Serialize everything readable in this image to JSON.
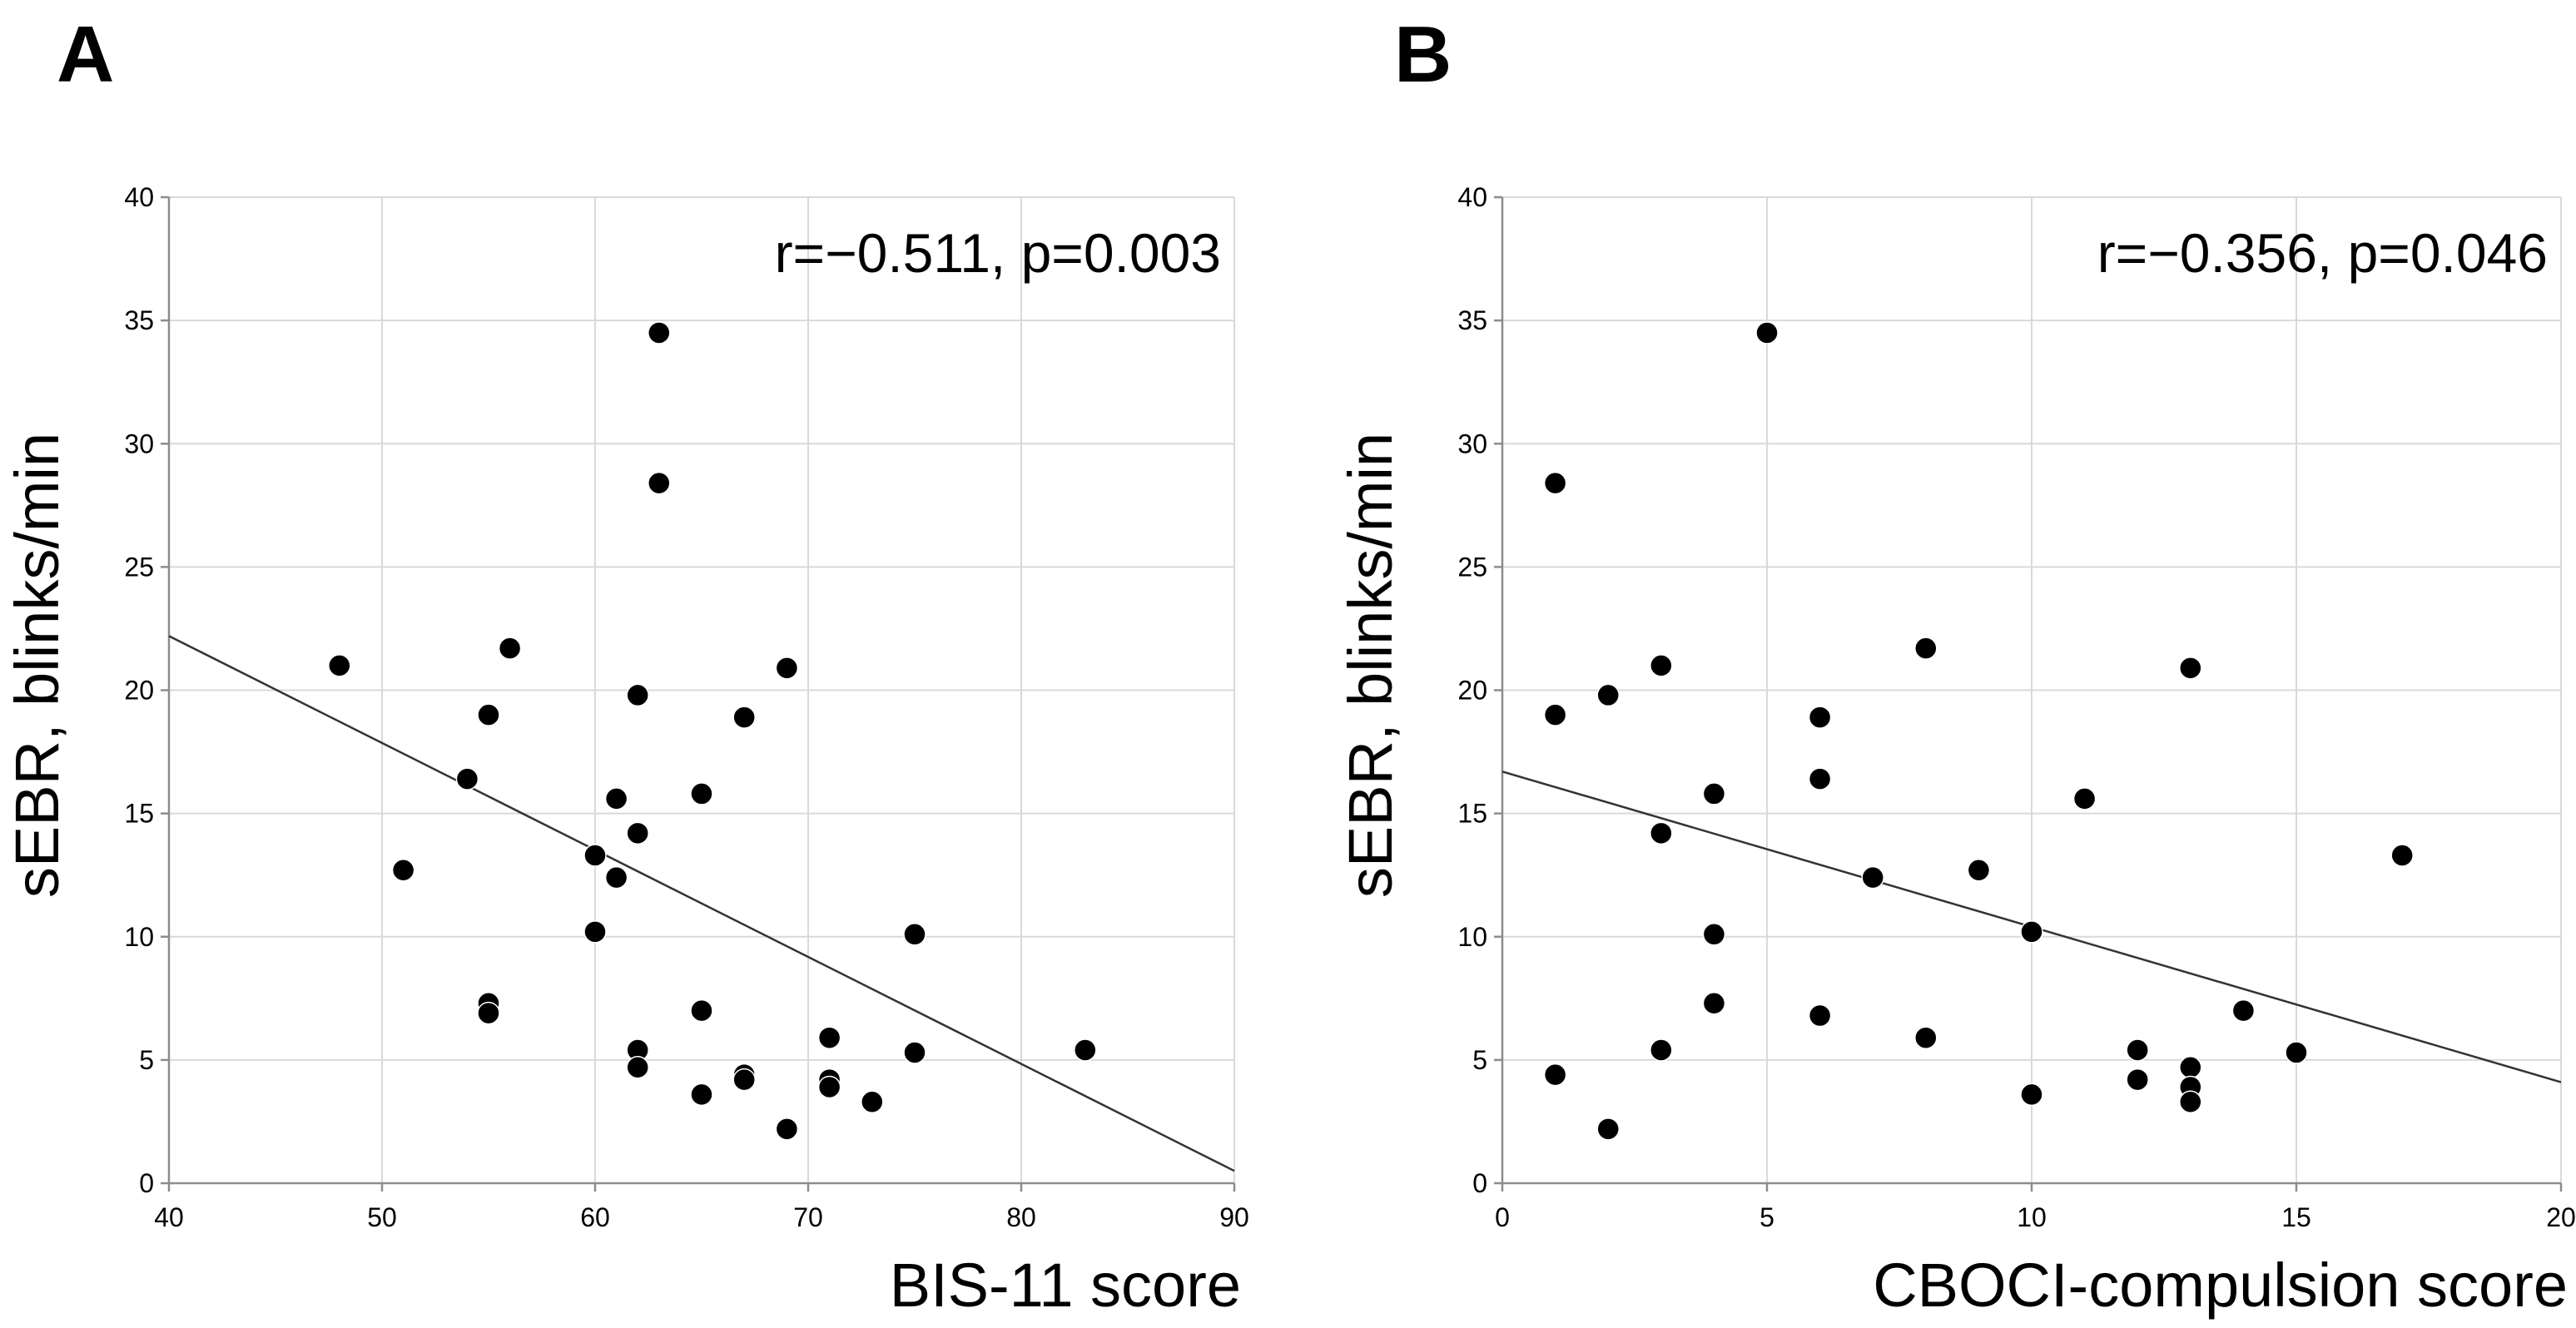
{
  "figure": {
    "panels": [
      {
        "label": "A"
      },
      {
        "label": "B"
      }
    ]
  },
  "chart_data": [
    {
      "type": "scatter",
      "panel": "A",
      "xlabel": "BIS-11 score",
      "ylabel": "sEBR, blinks/min",
      "annotation": "r=−0.511, p=0.003",
      "xlim": [
        40,
        90
      ],
      "ylim": [
        0,
        40
      ],
      "xticks": [
        "40",
        "50",
        "60",
        "70",
        "80",
        "90"
      ],
      "yticks": [
        "0",
        "5",
        "10",
        "15",
        "20",
        "25",
        "30",
        "35",
        "40"
      ],
      "grid": true,
      "points": [
        [
          48,
          21.0
        ],
        [
          51,
          12.7
        ],
        [
          54,
          16.4
        ],
        [
          55,
          19.0
        ],
        [
          55,
          7.3
        ],
        [
          55,
          6.9
        ],
        [
          56,
          21.7
        ],
        [
          60,
          13.3
        ],
        [
          60,
          10.2
        ],
        [
          61,
          15.6
        ],
        [
          61,
          12.4
        ],
        [
          62,
          19.8
        ],
        [
          62,
          14.2
        ],
        [
          62,
          5.4
        ],
        [
          62,
          4.7
        ],
        [
          63,
          34.5
        ],
        [
          63,
          28.4
        ],
        [
          65,
          15.8
        ],
        [
          65,
          7.0
        ],
        [
          65,
          3.6
        ],
        [
          67,
          18.9
        ],
        [
          67,
          4.4
        ],
        [
          67,
          4.2
        ],
        [
          69,
          20.9
        ],
        [
          69,
          2.2
        ],
        [
          71,
          5.9
        ],
        [
          71,
          4.2
        ],
        [
          71,
          3.9
        ],
        [
          73,
          3.3
        ],
        [
          75,
          10.1
        ],
        [
          75,
          5.3
        ],
        [
          83,
          5.4
        ]
      ],
      "fit_line": {
        "x": [
          40,
          90
        ],
        "y": [
          22.2,
          0.5
        ]
      }
    },
    {
      "type": "scatter",
      "panel": "B",
      "xlabel": "CBOCI-compulsion score",
      "ylabel": "sEBR, blinks/min",
      "annotation": "r=−0.356, p=0.046",
      "xlim": [
        0,
        20
      ],
      "ylim": [
        0,
        40
      ],
      "xticks": [
        "0",
        "5",
        "10",
        "15",
        "20"
      ],
      "yticks": [
        "0",
        "5",
        "10",
        "15",
        "20",
        "25",
        "30",
        "35",
        "40"
      ],
      "grid": true,
      "points": [
        [
          1,
          28.4
        ],
        [
          1,
          19.0
        ],
        [
          1,
          4.4
        ],
        [
          2,
          19.8
        ],
        [
          2,
          2.2
        ],
        [
          3,
          21.0
        ],
        [
          3,
          14.2
        ],
        [
          3,
          5.4
        ],
        [
          4,
          15.8
        ],
        [
          4,
          10.1
        ],
        [
          4,
          7.3
        ],
        [
          5,
          34.5
        ],
        [
          6,
          18.9
        ],
        [
          6,
          16.4
        ],
        [
          6,
          6.8
        ],
        [
          7,
          12.4
        ],
        [
          8,
          21.7
        ],
        [
          8,
          5.9
        ],
        [
          9,
          12.7
        ],
        [
          10,
          10.2
        ],
        [
          10,
          3.6
        ],
        [
          11,
          15.6
        ],
        [
          12,
          5.4
        ],
        [
          12,
          4.2
        ],
        [
          13,
          20.9
        ],
        [
          13,
          4.7
        ],
        [
          13,
          3.9
        ],
        [
          13,
          3.3
        ],
        [
          14,
          7.0
        ],
        [
          15,
          5.3
        ],
        [
          17,
          13.3
        ]
      ],
      "fit_line": {
        "x": [
          0,
          20
        ],
        "y": [
          16.7,
          4.1
        ]
      }
    }
  ]
}
